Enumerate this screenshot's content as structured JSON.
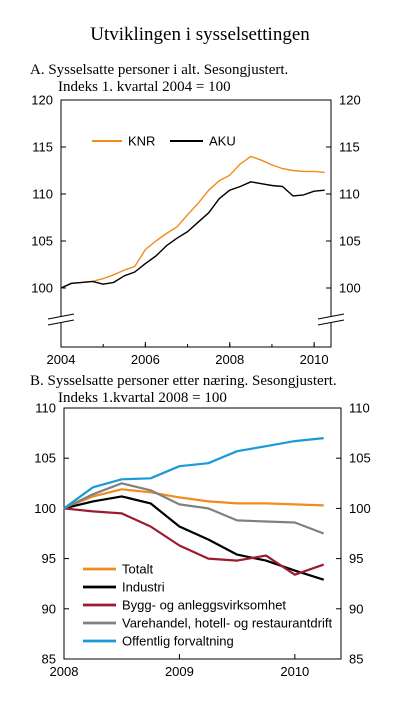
{
  "figure_title": "Utviklingen i sysselsettingen",
  "chart_data": [
    {
      "type": "line",
      "panel_title_line1": "A.  Sysselsatte personer i alt. Sesongjustert.",
      "panel_title_line2": "Indeks 1. kvartal 2004 = 100",
      "ylim": [
        100,
        120
      ],
      "yticks": [
        "120",
        "115",
        "110",
        "105",
        "100"
      ],
      "xlim": [
        2004,
        2010.4
      ],
      "xticks": [
        "2004",
        "2006",
        "2008",
        "2010"
      ],
      "axis_break": true,
      "legend_placement": "top",
      "series": [
        {
          "name": "KNR",
          "color": "#f08c1e",
          "x": [
            2004.0,
            2004.25,
            2004.5,
            2004.75,
            2005.0,
            2005.25,
            2005.5,
            2005.75,
            2006.0,
            2006.25,
            2006.5,
            2006.75,
            2007.0,
            2007.25,
            2007.5,
            2007.75,
            2008.0,
            2008.25,
            2008.5,
            2008.75,
            2009.0,
            2009.25,
            2009.5,
            2009.75,
            2010.0,
            2010.25
          ],
          "values": [
            100.0,
            100.5,
            100.6,
            100.7,
            101.0,
            101.4,
            101.9,
            102.3,
            104.1,
            105.0,
            105.8,
            106.5,
            107.8,
            109.0,
            110.4,
            111.4,
            112.0,
            113.2,
            114.0,
            113.6,
            113.1,
            112.7,
            112.5,
            112.4,
            112.4,
            112.3
          ]
        },
        {
          "name": "AKU",
          "color": "#000000",
          "x": [
            2004.0,
            2004.25,
            2004.5,
            2004.75,
            2005.0,
            2005.25,
            2005.5,
            2005.75,
            2006.0,
            2006.25,
            2006.5,
            2006.75,
            2007.0,
            2007.25,
            2007.5,
            2007.75,
            2008.0,
            2008.25,
            2008.5,
            2008.75,
            2009.0,
            2009.25,
            2009.5,
            2009.75,
            2010.0,
            2010.25
          ],
          "values": [
            100.0,
            100.5,
            100.6,
            100.7,
            100.4,
            100.6,
            101.3,
            101.7,
            102.6,
            103.4,
            104.5,
            105.3,
            106.0,
            107.0,
            108.0,
            109.5,
            110.4,
            110.8,
            111.3,
            111.1,
            110.9,
            110.8,
            109.8,
            109.9,
            110.3,
            110.4
          ]
        }
      ]
    },
    {
      "type": "line",
      "panel_title_line1": "B.  Sysselsatte personer etter næring. Sesongjustert.",
      "panel_title_line2": "Indeks 1.kvartal 2008 = 100",
      "ylim": [
        85,
        110
      ],
      "yticks": [
        "110",
        "105",
        "100",
        "95",
        "90",
        "85"
      ],
      "xlim": [
        2008,
        2010.4
      ],
      "xticks": [
        "2008",
        "2009",
        "2010"
      ],
      "legend_placement": "bottom-left",
      "series": [
        {
          "name": "Totalt",
          "color": "#f08c1e",
          "x": [
            2008.0,
            2008.25,
            2008.5,
            2008.75,
            2009.0,
            2009.25,
            2009.5,
            2009.75,
            2010.0,
            2010.25
          ],
          "values": [
            100.0,
            101.2,
            101.9,
            101.6,
            101.1,
            100.7,
            100.5,
            100.5,
            100.4,
            100.3
          ]
        },
        {
          "name": "Industri",
          "color": "#000000",
          "x": [
            2008.0,
            2008.25,
            2008.5,
            2008.75,
            2009.0,
            2009.25,
            2009.5,
            2009.75,
            2010.0,
            2010.25
          ],
          "values": [
            100.0,
            100.7,
            101.2,
            100.5,
            98.2,
            96.9,
            95.4,
            94.8,
            93.8,
            92.9
          ]
        },
        {
          "name": "Bygg- og anleggsvirksomhet",
          "color": "#9b1b30",
          "x": [
            2008.0,
            2008.25,
            2008.5,
            2008.75,
            2009.0,
            2009.25,
            2009.5,
            2009.75,
            2010.0,
            2010.25
          ],
          "values": [
            100.0,
            99.7,
            99.5,
            98.2,
            96.3,
            95.0,
            94.8,
            95.3,
            93.4,
            94.4
          ]
        },
        {
          "name": "Varehandel, hotell- og restaurantdrift",
          "color": "#808080",
          "x": [
            2008.0,
            2008.25,
            2008.5,
            2008.75,
            2009.0,
            2009.25,
            2009.5,
            2009.75,
            2010.0,
            2010.25
          ],
          "values": [
            100.0,
            101.4,
            102.5,
            101.8,
            100.4,
            100.0,
            98.8,
            98.7,
            98.6,
            97.5
          ]
        },
        {
          "name": "Offentlig forvaltning",
          "color": "#1a9ad6",
          "x": [
            2008.0,
            2008.25,
            2008.5,
            2008.75,
            2009.0,
            2009.25,
            2009.5,
            2009.75,
            2010.0,
            2010.25
          ],
          "values": [
            100.0,
            102.1,
            102.9,
            103.0,
            104.2,
            104.5,
            105.7,
            106.2,
            106.7,
            107.0
          ]
        }
      ]
    }
  ]
}
